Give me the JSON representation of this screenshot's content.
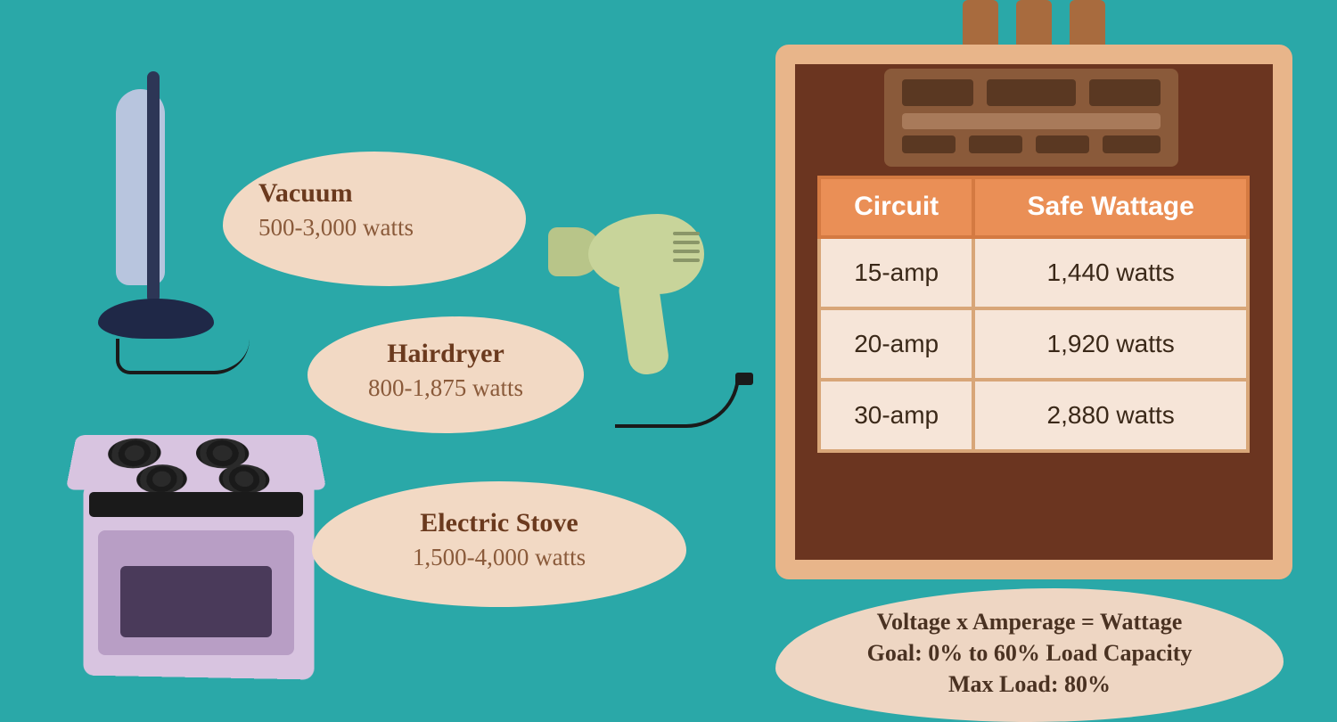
{
  "colors": {
    "background": "#2aa8a8",
    "bubble_bg": "#f2d9c4",
    "title_text": "#6b3a1e",
    "value_text": "#8a5a3a",
    "formula_text": "#4a3222",
    "table_header_bg": "#ea8f56",
    "table_header_text": "#ffffff",
    "table_cell_bg": "#f6e5d8",
    "table_cell_text": "#3a2818",
    "panel_frame": "#e8b58a",
    "panel_inner": "#6b3520",
    "vacuum_body": "#b8c5de",
    "vacuum_dark": "#1f2847",
    "hairdryer": "#c8d49a",
    "stove": "#d8c4e0"
  },
  "appliances": {
    "vacuum": {
      "title": "Vacuum",
      "watts": "500-3,000 watts"
    },
    "hairdryer": {
      "title": "Hairdryer",
      "watts": "800-1,875 watts"
    },
    "stove": {
      "title": "Electric Stove",
      "watts": "1,500-4,000 watts"
    }
  },
  "table": {
    "headers": {
      "col1": "Circuit",
      "col2": "Safe Wattage"
    },
    "rows": [
      {
        "circuit": "15-amp",
        "wattage": "1,440 watts"
      },
      {
        "circuit": "20-amp",
        "wattage": "1,920 watts"
      },
      {
        "circuit": "30-amp",
        "wattage": "2,880 watts"
      }
    ]
  },
  "formula": {
    "line1": "Voltage x Amperage = Wattage",
    "line2": "Goal: 0% to 60% Load Capacity",
    "line3": "Max Load: 80%"
  }
}
